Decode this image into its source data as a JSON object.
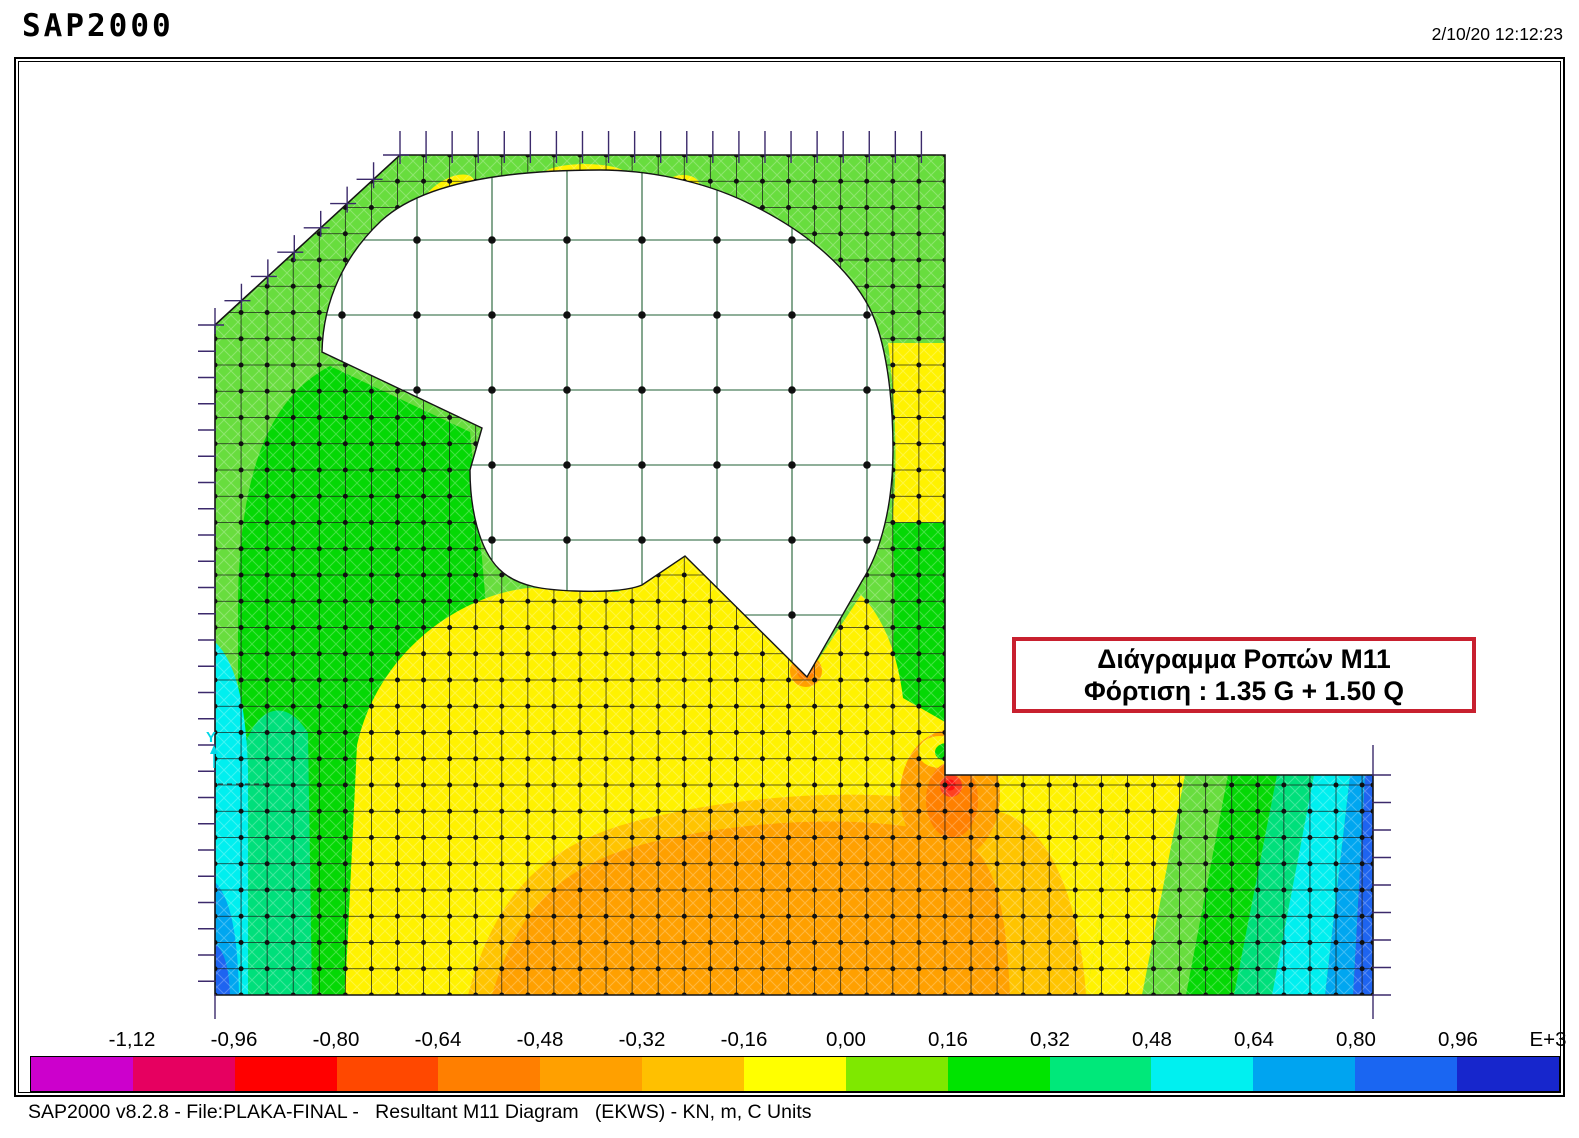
{
  "header": {
    "app_title": "SAP2000",
    "timestamp": "2/10/20 12:12:23"
  },
  "annotation_box": {
    "line1": "Διάγραμμα Ροπών M11",
    "line2": "Φόρτιση : 1.35 G + 1.50 Q",
    "border_color": "#C8202F"
  },
  "axis_marker": {
    "label": "Y",
    "color": "#00D8E8"
  },
  "legend": {
    "labels": [
      "-1,12",
      "-0,96",
      "-0,80",
      "-0,64",
      "-0,48",
      "-0,32",
      "-0,16",
      "0,00",
      "0,16",
      "0,32",
      "0,48",
      "0,64",
      "0,80",
      "0,96"
    ],
    "unit_label": "E+3",
    "colors": [
      "#cc00cc",
      "#e60060",
      "#ff0000",
      "#ff4800",
      "#ff7f00",
      "#ffa000",
      "#ffc000",
      "#ffff00",
      "#7fe800",
      "#00e400",
      "#00e87a",
      "#00f0f0",
      "#00a4f0",
      "#1a66f2",
      "#1726cc"
    ]
  },
  "footer": {
    "status_line": "SAP2000 v8.2.8 - File:PLAKA-FINAL -   Resultant M11 Diagram   (EKWS) - KN, m, C Units"
  },
  "plot": {
    "palette": {
      "light_green": "#68DD3E",
      "green": "#05D805",
      "spring_green": "#00DF7B",
      "cyan": "#00EFEF",
      "sky_blue": "#00A6F0",
      "blue": "#1E64F0",
      "yellow": "#FFF200",
      "amber": "#FFC400",
      "orange": "#FFA000",
      "dark_orange": "#FF8000",
      "orange_red": "#FF4020",
      "red": "#FF1111",
      "mesh_line": "#1b1b1b",
      "hole_grid_line": "#1f5f33",
      "support": "#3b2a6b",
      "background": "#ffffff"
    }
  }
}
